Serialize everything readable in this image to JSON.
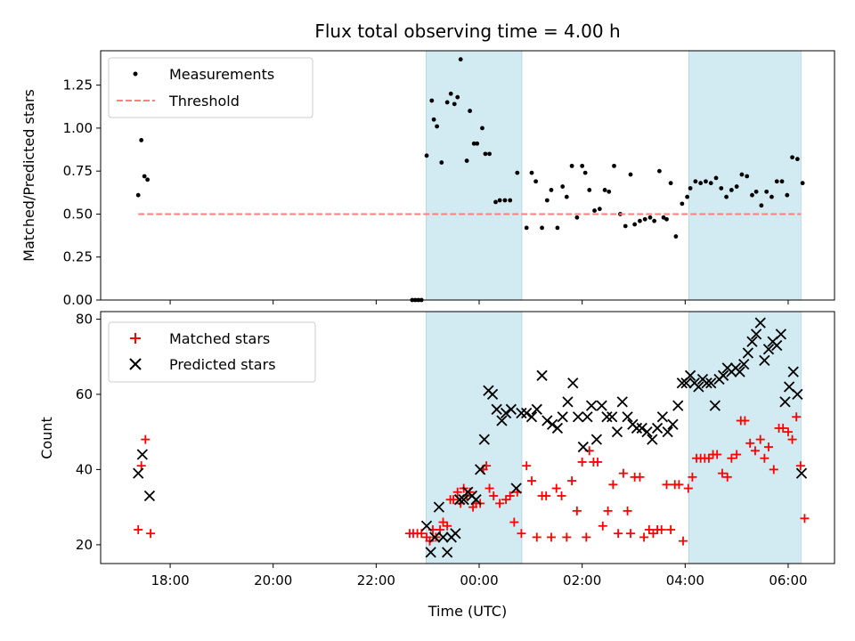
{
  "chart_data": [
    {
      "type": "scatter",
      "title": "Flux total observing time = 4.00 h",
      "xlabel": "",
      "ylabel": "Matched/Predicted stars",
      "ylim": [
        0,
        1.45
      ],
      "xlim": [
        16.65,
        30.9
      ],
      "x_ticks": [
        18,
        20,
        22,
        24,
        26,
        28,
        30
      ],
      "y_ticks": [
        0.0,
        0.25,
        0.5,
        0.75,
        1.0,
        1.25
      ],
      "y_tick_labels": [
        "0.00",
        "0.25",
        "0.50",
        "0.75",
        "1.00",
        "1.25"
      ],
      "legend_position": "upper-left",
      "shaded_x_ranges": [
        [
          22.97,
          24.83
        ],
        [
          28.07,
          30.25
        ]
      ],
      "shade_color": "#add8e6",
      "series": [
        {
          "name": "Measurements",
          "kind": "scatter",
          "marker": "dot",
          "color": "#000000",
          "x": [
            17.38,
            17.44,
            17.5,
            17.56,
            22.7,
            22.76,
            22.82,
            22.88,
            22.98,
            23.08,
            23.12,
            23.18,
            23.27,
            23.38,
            23.45,
            23.52,
            23.58,
            23.64,
            23.76,
            23.82,
            23.9,
            23.96,
            24.06,
            24.12,
            24.2,
            24.32,
            24.4,
            24.5,
            24.6,
            24.74,
            24.92,
            25.02,
            25.1,
            25.22,
            25.32,
            25.4,
            25.52,
            25.62,
            25.7,
            25.8,
            25.9,
            26.0,
            26.06,
            26.14,
            26.24,
            26.34,
            26.44,
            26.52,
            26.62,
            26.74,
            26.84,
            26.94,
            27.02,
            27.12,
            27.22,
            27.32,
            27.4,
            27.5,
            27.58,
            27.64,
            27.72,
            27.82,
            27.94,
            28.04,
            28.1,
            28.2,
            28.3,
            28.4,
            28.5,
            28.6,
            28.7,
            28.8,
            28.9,
            29.0,
            29.1,
            29.2,
            29.3,
            29.38,
            29.48,
            29.58,
            29.68,
            29.78,
            29.88,
            29.98,
            30.08,
            30.18,
            30.28
          ],
          "y": [
            0.61,
            0.93,
            0.72,
            0.7,
            0.0,
            0.0,
            0.0,
            0.0,
            0.84,
            1.16,
            1.05,
            1.01,
            0.8,
            1.15,
            1.2,
            1.14,
            1.18,
            1.4,
            0.81,
            1.1,
            0.91,
            0.91,
            1.0,
            0.85,
            0.85,
            0.57,
            0.58,
            0.58,
            0.58,
            0.74,
            0.42,
            0.74,
            0.69,
            0.42,
            0.58,
            0.64,
            0.42,
            0.66,
            0.6,
            0.78,
            0.48,
            0.78,
            0.74,
            0.64,
            0.52,
            0.53,
            0.64,
            0.63,
            0.78,
            0.5,
            0.43,
            0.73,
            0.44,
            0.46,
            0.47,
            0.48,
            0.46,
            0.75,
            0.48,
            0.47,
            0.68,
            0.37,
            0.56,
            0.6,
            0.65,
            0.69,
            0.68,
            0.69,
            0.68,
            0.71,
            0.65,
            0.6,
            0.64,
            0.66,
            0.73,
            0.72,
            0.61,
            0.63,
            0.55,
            0.63,
            0.6,
            0.69,
            0.69,
            0.61,
            0.83,
            0.82,
            0.68
          ]
        },
        {
          "name": "Threshold",
          "kind": "line",
          "style": "dashed",
          "color": "#ff7f7f",
          "x": [
            17.38,
            30.25
          ],
          "y": [
            0.5,
            0.5
          ]
        }
      ]
    },
    {
      "type": "scatter",
      "title": "",
      "xlabel": "Time (UTC)",
      "ylabel": "Count",
      "ylim": [
        15,
        82
      ],
      "xlim": [
        16.65,
        30.9
      ],
      "x_ticks": [
        18,
        20,
        22,
        24,
        26,
        28,
        30
      ],
      "x_tick_labels": [
        "18:00",
        "20:00",
        "22:00",
        "00:00",
        "02:00",
        "04:00",
        "06:00"
      ],
      "y_ticks": [
        20,
        40,
        60,
        80
      ],
      "y_tick_labels": [
        "20",
        "40",
        "60",
        "80"
      ],
      "legend_position": "upper-left",
      "shaded_x_ranges": [
        [
          22.97,
          24.83
        ],
        [
          28.07,
          30.25
        ]
      ],
      "shade_color": "#add8e6",
      "series": [
        {
          "name": "Matched stars",
          "kind": "scatter",
          "marker": "plus",
          "color": "#ff0000",
          "x": [
            17.38,
            17.44,
            17.52,
            17.62,
            22.65,
            22.72,
            22.8,
            22.88,
            22.98,
            23.04,
            23.1,
            23.16,
            23.24,
            23.3,
            23.38,
            23.44,
            23.5,
            23.58,
            23.64,
            23.7,
            23.76,
            23.82,
            23.88,
            23.94,
            24.02,
            24.08,
            24.14,
            24.2,
            24.28,
            24.4,
            24.52,
            24.6,
            24.68,
            24.74,
            24.82,
            24.92,
            25.02,
            25.12,
            25.22,
            25.3,
            25.4,
            25.5,
            25.6,
            25.7,
            25.8,
            25.9,
            26.0,
            26.08,
            26.14,
            26.22,
            26.3,
            26.4,
            26.5,
            26.6,
            26.7,
            26.8,
            26.88,
            26.94,
            27.02,
            27.12,
            27.2,
            27.3,
            27.38,
            27.46,
            27.54,
            27.64,
            27.72,
            27.8,
            27.88,
            27.96,
            28.06,
            28.14,
            28.22,
            28.3,
            28.38,
            28.46,
            28.54,
            28.62,
            28.72,
            28.82,
            28.9,
            29.0,
            29.08,
            29.16,
            29.26,
            29.36,
            29.46,
            29.54,
            29.62,
            29.72,
            29.82,
            29.9,
            30.0,
            30.08,
            30.16,
            30.24,
            30.32
          ],
          "y": [
            24,
            41,
            48,
            23,
            23,
            23,
            23,
            23,
            22,
            21,
            24,
            22,
            24,
            26,
            25,
            32,
            32,
            34,
            31,
            35,
            33,
            34,
            30,
            31,
            31,
            40,
            41,
            35,
            33,
            31,
            32,
            33,
            26,
            34,
            23,
            41,
            37,
            22,
            33,
            33,
            22,
            35,
            33,
            22,
            37,
            29,
            42,
            22,
            45,
            42,
            42,
            25,
            29,
            36,
            23,
            39,
            29,
            23,
            38,
            38,
            22,
            24,
            23,
            24,
            24,
            36,
            24,
            36,
            36,
            21,
            35,
            38,
            43,
            43,
            43,
            43,
            44,
            44,
            39,
            38,
            43,
            44,
            53,
            53,
            47,
            45,
            48,
            43,
            46,
            40,
            51,
            51,
            50,
            48,
            54,
            41,
            27
          ]
        },
        {
          "name": "Predicted stars",
          "kind": "scatter",
          "marker": "x",
          "color": "#000000",
          "x": [
            17.38,
            17.46,
            17.6,
            22.98,
            23.06,
            23.14,
            23.22,
            23.3,
            23.38,
            23.46,
            23.54,
            23.62,
            23.7,
            23.78,
            23.86,
            23.94,
            24.02,
            24.1,
            24.18,
            24.26,
            24.34,
            24.44,
            24.52,
            24.62,
            24.72,
            24.82,
            24.92,
            25.02,
            25.12,
            25.22,
            25.32,
            25.42,
            25.52,
            25.62,
            25.72,
            25.82,
            25.92,
            26.02,
            26.1,
            26.18,
            26.28,
            26.38,
            26.48,
            26.58,
            26.68,
            26.78,
            26.88,
            26.98,
            27.06,
            27.16,
            27.26,
            27.36,
            27.46,
            27.56,
            27.66,
            27.76,
            27.86,
            27.94,
            28.02,
            28.1,
            28.18,
            28.26,
            28.34,
            28.42,
            28.5,
            28.58,
            28.66,
            28.74,
            28.82,
            28.9,
            28.98,
            29.06,
            29.14,
            29.22,
            29.3,
            29.38,
            29.46,
            29.54,
            29.62,
            29.7,
            29.78,
            29.86,
            29.94,
            30.02,
            30.1,
            30.18,
            30.26
          ],
          "y": [
            39,
            44,
            33,
            25,
            18,
            22,
            30,
            22,
            18,
            22,
            23,
            32,
            32,
            34,
            33,
            32,
            40,
            48,
            61,
            60,
            56,
            53,
            55,
            56,
            35,
            55,
            55,
            54,
            56,
            65,
            53,
            52,
            51,
            54,
            58,
            63,
            54,
            46,
            54,
            57,
            48,
            57,
            54,
            54,
            50,
            58,
            54,
            52,
            51,
            51,
            50,
            48,
            51,
            54,
            50,
            52,
            57,
            63,
            63,
            65,
            63,
            62,
            64,
            63,
            63,
            57,
            64,
            65,
            67,
            66,
            67,
            66,
            68,
            71,
            74,
            76,
            79,
            69,
            72,
            74,
            73,
            76,
            58,
            62,
            66,
            60,
            39
          ]
        }
      ]
    }
  ]
}
